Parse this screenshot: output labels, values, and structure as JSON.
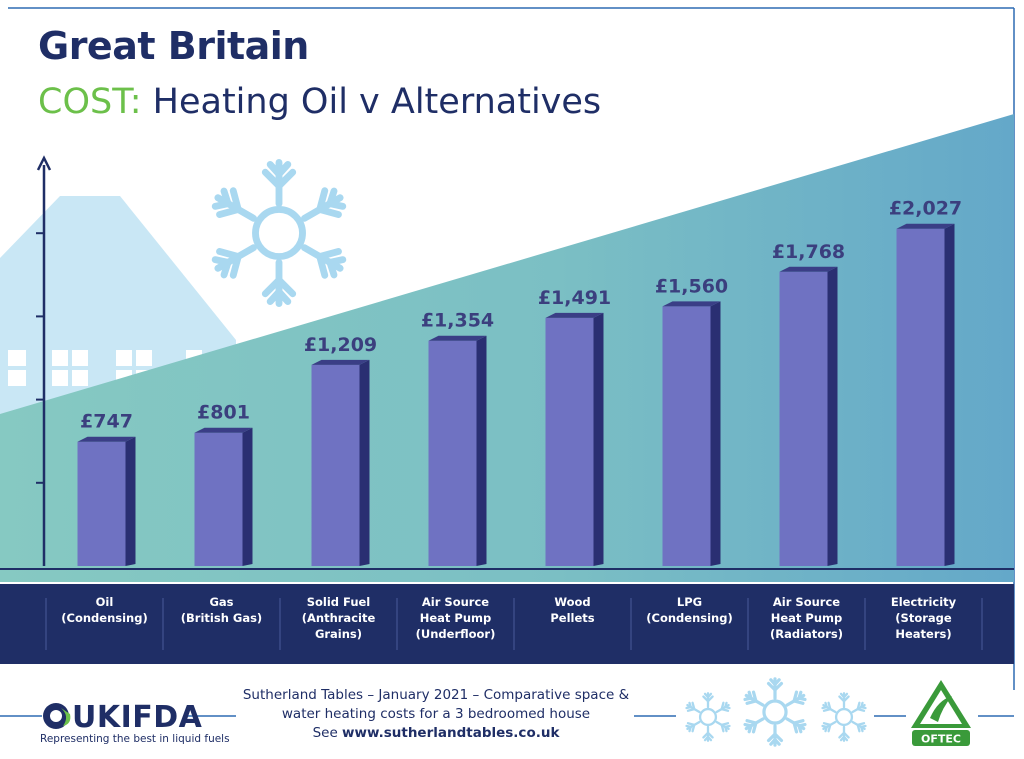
{
  "header": {
    "title_line1": "Great Britain",
    "title_accent": "COST:",
    "title_rest": " Heating Oil v Alternatives"
  },
  "colors": {
    "navy": "#1f2e66",
    "green": "#6cc04a",
    "teal": "#7cc3c4",
    "sky": "#c9e7f5",
    "snow": "#a9d8f0",
    "bar_front": "#6f72c2",
    "bar_side": "#2a2f72",
    "bar_top": "#3a3e86"
  },
  "chart_data": {
    "type": "bar",
    "categories": [
      [
        "Oil",
        "(Condensing)"
      ],
      [
        "Gas",
        "(British Gas)"
      ],
      [
        "Solid Fuel",
        "(Anthracite",
        "Grains)"
      ],
      [
        "Air Source",
        "Heat Pump",
        "(Underfloor)"
      ],
      [
        "Wood",
        "Pellets"
      ],
      [
        "LPG",
        "(Condensing)"
      ],
      [
        "Air Source",
        "Heat Pump",
        "(Radiators)"
      ],
      [
        "Electricity",
        "(Storage",
        "Heaters)"
      ]
    ],
    "values": [
      747,
      801,
      1209,
      1354,
      1491,
      1560,
      1768,
      2027
    ],
    "value_labels": [
      "£747",
      "£801",
      "£1,209",
      "£1,354",
      "£1,491",
      "£1,560",
      "£1,768",
      "£2,027"
    ],
    "ylim": [
      0,
      2500
    ],
    "xlabel": "",
    "ylabel": ""
  },
  "footer": {
    "line1": "Sutherland Tables – January 2021 – Comparative space &",
    "line2": "water heating costs for a 3 bedroomed house",
    "see": "See ",
    "url": "www.sutherlandtables.co.uk",
    "brand": "UKIFDA",
    "tagline": "Representing the best in liquid fuels",
    "oftec": "OFTEC"
  }
}
